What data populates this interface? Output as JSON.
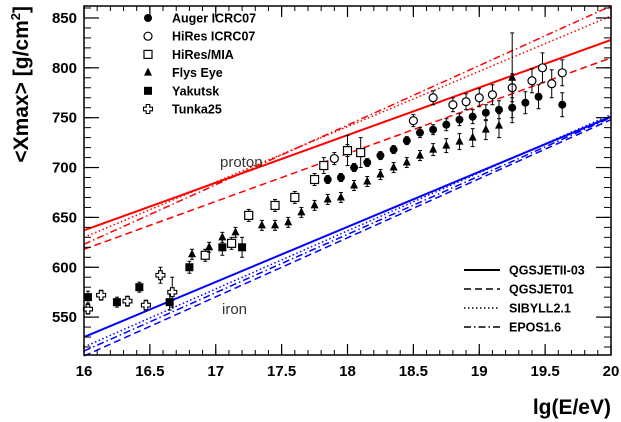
{
  "chart_data": {
    "type": "scatter",
    "xlabel": "lg(E/eV)",
    "ylabel_main": "<Xmax> [g/cm",
    "ylabel_sup": "2",
    "ylabel_end": "]",
    "xlim": [
      16,
      20
    ],
    "ylim": [
      512,
      862
    ],
    "x_ticks": [
      16,
      16.5,
      17,
      17.5,
      18,
      18.5,
      19,
      19.5,
      20
    ],
    "x_tick_labels": [
      "16",
      "16.5",
      "17",
      "17.5",
      "18",
      "18.5",
      "19",
      "19.5",
      "20"
    ],
    "y_ticks": [
      550,
      600,
      650,
      700,
      750,
      800,
      850
    ],
    "y_tick_labels": [
      "550",
      "600",
      "650",
      "700",
      "750",
      "800",
      "850"
    ],
    "grid": false,
    "annotations": [
      {
        "text": "proton",
        "x": 17.38,
        "y": 702,
        "color": "#333333"
      },
      {
        "text": "iron",
        "x": 17.38,
        "y": 560,
        "color": "#333333"
      }
    ],
    "colors": {
      "proton": "#ff0000",
      "iron": "#0000ff"
    },
    "model_legend_position": "bottom-right",
    "data_legend_position": "top-left",
    "models": [
      {
        "name": "QGSJETII-03",
        "style": "solid",
        "proton": [
          [
            16,
            637
          ],
          [
            20,
            828
          ]
        ],
        "iron": [
          [
            16,
            530
          ],
          [
            20,
            751
          ]
        ]
      },
      {
        "name": "QGSJET01",
        "style": "dashed",
        "proton": [
          [
            16,
            618
          ],
          [
            20,
            810
          ]
        ],
        "iron": [
          [
            16,
            511
          ],
          [
            20,
            748
          ]
        ]
      },
      {
        "name": "SIBYLL2.1",
        "style": "dotted",
        "proton": [
          [
            16,
            630
          ],
          [
            20,
            852
          ]
        ],
        "iron": [
          [
            16,
            520
          ],
          [
            20,
            753
          ]
        ]
      },
      {
        "name": "EPOS1.6",
        "style": "dashdot",
        "proton": [
          [
            16,
            623
          ],
          [
            20,
            862
          ]
        ],
        "iron": [
          [
            16,
            516
          ],
          [
            20,
            750
          ]
        ]
      }
    ],
    "series": [
      {
        "name": "Auger ICRC07",
        "marker": "circle-filled",
        "points": [
          [
            17.85,
            688,
            4
          ],
          [
            17.95,
            690,
            4
          ],
          [
            18.05,
            700,
            4
          ],
          [
            18.15,
            705,
            4
          ],
          [
            18.25,
            712,
            4
          ],
          [
            18.35,
            718,
            4
          ],
          [
            18.45,
            727,
            4
          ],
          [
            18.55,
            735,
            5
          ],
          [
            18.65,
            738,
            5
          ],
          [
            18.75,
            743,
            6
          ],
          [
            18.85,
            748,
            6
          ],
          [
            18.95,
            751,
            7
          ],
          [
            19.05,
            755,
            8
          ],
          [
            19.15,
            758,
            9
          ],
          [
            19.25,
            760,
            10
          ],
          [
            19.35,
            765,
            11
          ],
          [
            19.45,
            771,
            12
          ],
          [
            19.63,
            763,
            12
          ]
        ]
      },
      {
        "name": "HiRes ICRC07",
        "marker": "circle-open",
        "points": [
          [
            17.9,
            709,
            6
          ],
          [
            18.0,
            717,
            6
          ],
          [
            18.5,
            747,
            6
          ],
          [
            18.65,
            770,
            7
          ],
          [
            18.8,
            763,
            7
          ],
          [
            18.9,
            766,
            8
          ],
          [
            19.0,
            770,
            9
          ],
          [
            19.1,
            773,
            10
          ],
          [
            19.25,
            780,
            14
          ],
          [
            19.4,
            787,
            12
          ],
          [
            19.48,
            800,
            15
          ],
          [
            19.55,
            784,
            14
          ],
          [
            19.63,
            795,
            13
          ]
        ]
      },
      {
        "name": "HiRes/MIA",
        "marker": "square-open",
        "points": [
          [
            16.92,
            612,
            6
          ],
          [
            17.12,
            624,
            6
          ],
          [
            17.25,
            652,
            6
          ],
          [
            17.45,
            662,
            6
          ],
          [
            17.6,
            670,
            6
          ],
          [
            17.75,
            688,
            6
          ],
          [
            17.82,
            702,
            8
          ],
          [
            18.0,
            717,
            15
          ],
          [
            18.1,
            715,
            15
          ]
        ]
      },
      {
        "name": "Flys Eye",
        "marker": "triangle",
        "points": [
          [
            16.82,
            613,
            5
          ],
          [
            16.95,
            620,
            5
          ],
          [
            17.05,
            630,
            5
          ],
          [
            17.15,
            635,
            5
          ],
          [
            17.35,
            642,
            5
          ],
          [
            17.45,
            642,
            5
          ],
          [
            17.55,
            645,
            5
          ],
          [
            17.65,
            655,
            5
          ],
          [
            17.75,
            662,
            5
          ],
          [
            17.85,
            668,
            5
          ],
          [
            17.95,
            670,
            5
          ],
          [
            18.05,
            682,
            5
          ],
          [
            18.15,
            686,
            5
          ],
          [
            18.25,
            693,
            5
          ],
          [
            18.35,
            700,
            5
          ],
          [
            18.45,
            705,
            5
          ],
          [
            18.55,
            712,
            5
          ],
          [
            18.65,
            718,
            6
          ],
          [
            18.75,
            722,
            7
          ],
          [
            18.85,
            726,
            8
          ],
          [
            18.95,
            730,
            9
          ],
          [
            19.05,
            738,
            10
          ],
          [
            19.15,
            742,
            12
          ],
          [
            19.25,
            790,
            45
          ]
        ]
      },
      {
        "name": "Yakutsk",
        "marker": "square-filled",
        "points": [
          [
            16.03,
            570,
            6
          ],
          [
            16.25,
            565,
            5
          ],
          [
            16.42,
            580,
            5
          ],
          [
            16.65,
            565,
            8
          ],
          [
            16.8,
            600,
            6
          ],
          [
            17.05,
            620,
            8
          ],
          [
            17.2,
            620,
            10
          ]
        ]
      },
      {
        "name": "Tunka25",
        "marker": "cross-open",
        "points": [
          [
            16.03,
            558,
            5
          ],
          [
            16.13,
            572,
            5
          ],
          [
            16.33,
            566,
            5
          ],
          [
            16.47,
            562,
            5
          ],
          [
            16.58,
            592,
            8
          ],
          [
            16.67,
            575,
            15
          ]
        ]
      }
    ]
  }
}
